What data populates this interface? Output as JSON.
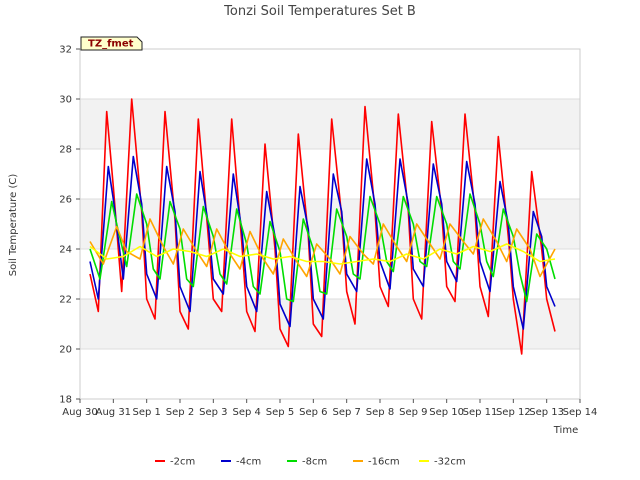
{
  "chart_data": {
    "type": "line",
    "title": "Tonzi Soil Temperatures Set B",
    "xlabel": "Time",
    "ylabel": "Soil Temperature (C)",
    "ylim": [
      18,
      32
    ],
    "yticks": [
      18,
      20,
      22,
      24,
      26,
      28,
      30,
      32
    ],
    "xlim": [
      0,
      15
    ],
    "xtick_labels": [
      "Aug 30",
      "Aug 31",
      "Sep 1",
      "Sep 2",
      "Sep 3",
      "Sep 4",
      "Sep 5",
      "Sep 6",
      "Sep 7",
      "Sep 8",
      "Sep 9",
      "Sep 10",
      "Sep 11",
      "Sep 12",
      "Sep 13",
      "Sep 14"
    ],
    "grid": "horizontal bands",
    "legend_position": "bottom",
    "annotation": "TZ_fmet",
    "series": [
      {
        "name": "-2cm",
        "color": "#ff0000",
        "x": [
          0.3,
          0.55,
          0.8,
          1.0,
          1.25,
          1.55,
          1.85,
          2.0,
          2.25,
          2.55,
          2.85,
          3.0,
          3.25,
          3.55,
          3.85,
          4.0,
          4.25,
          4.55,
          4.85,
          5.0,
          5.25,
          5.55,
          5.85,
          6.0,
          6.25,
          6.55,
          6.85,
          7.0,
          7.25,
          7.55,
          7.85,
          8.0,
          8.25,
          8.55,
          8.85,
          9.0,
          9.25,
          9.55,
          9.85,
          10.0,
          10.25,
          10.55,
          10.85,
          11.0,
          11.25,
          11.55,
          11.85,
          12.0,
          12.25,
          12.55,
          12.85,
          13.0,
          13.25,
          13.55,
          13.85,
          14.0,
          14.25
        ],
        "y": [
          23.0,
          21.5,
          29.5,
          26.5,
          22.3,
          30.0,
          25.5,
          22.0,
          21.2,
          29.5,
          25.2,
          21.5,
          20.8,
          29.2,
          24.5,
          22.0,
          21.5,
          29.2,
          24.3,
          21.5,
          20.7,
          28.2,
          24.0,
          20.8,
          20.1,
          28.6,
          24.5,
          21.0,
          20.5,
          29.2,
          25.3,
          22.3,
          21.0,
          29.7,
          25.5,
          22.5,
          21.7,
          29.4,
          25.5,
          22.0,
          21.2,
          29.1,
          25.5,
          22.5,
          21.9,
          29.4,
          25.5,
          22.5,
          21.3,
          28.5,
          24.5,
          22.0,
          19.8,
          27.1,
          24.0,
          22.0,
          20.7
        ]
      },
      {
        "name": "-4cm",
        "color": "#0000cc",
        "x": [
          0.3,
          0.55,
          0.85,
          1.0,
          1.3,
          1.6,
          1.85,
          2.0,
          2.3,
          2.6,
          2.85,
          3.0,
          3.3,
          3.6,
          3.85,
          4.0,
          4.3,
          4.6,
          4.85,
          5.0,
          5.3,
          5.6,
          5.85,
          6.0,
          6.3,
          6.6,
          6.85,
          7.0,
          7.3,
          7.6,
          7.85,
          8.0,
          8.3,
          8.6,
          8.85,
          9.0,
          9.3,
          9.6,
          9.85,
          10.0,
          10.3,
          10.6,
          10.85,
          11.0,
          11.3,
          11.6,
          11.85,
          12.0,
          12.3,
          12.6,
          12.85,
          13.0,
          13.3,
          13.6,
          13.85,
          14.0,
          14.25
        ],
        "y": [
          23.5,
          22.0,
          27.3,
          26.0,
          22.8,
          27.7,
          25.8,
          23.0,
          22.0,
          27.3,
          25.5,
          22.5,
          21.5,
          27.1,
          25.0,
          22.8,
          22.2,
          27.0,
          24.8,
          22.5,
          21.5,
          26.3,
          24.5,
          21.8,
          20.9,
          26.5,
          24.8,
          22.0,
          21.2,
          27.0,
          25.5,
          23.0,
          22.3,
          27.6,
          25.8,
          23.5,
          22.4,
          27.6,
          25.8,
          23.2,
          22.5,
          27.4,
          25.8,
          23.5,
          22.7,
          27.5,
          25.8,
          23.5,
          22.3,
          26.7,
          25.0,
          22.5,
          20.8,
          25.5,
          24.5,
          22.5,
          21.7
        ]
      },
      {
        "name": "-8cm",
        "color": "#00dd00",
        "x": [
          0.3,
          0.6,
          0.95,
          1.1,
          1.4,
          1.7,
          2.0,
          2.2,
          2.4,
          2.7,
          3.0,
          3.2,
          3.4,
          3.7,
          4.0,
          4.2,
          4.4,
          4.7,
          5.0,
          5.2,
          5.4,
          5.7,
          6.0,
          6.2,
          6.4,
          6.7,
          7.0,
          7.2,
          7.4,
          7.7,
          8.0,
          8.2,
          8.4,
          8.7,
          9.0,
          9.2,
          9.4,
          9.7,
          10.0,
          10.2,
          10.4,
          10.7,
          11.0,
          11.2,
          11.4,
          11.7,
          12.0,
          12.2,
          12.4,
          12.7,
          13.0,
          13.2,
          13.4,
          13.7,
          14.0,
          14.25
        ],
        "y": [
          24.0,
          22.8,
          25.9,
          25.0,
          23.3,
          26.2,
          25.0,
          23.2,
          22.8,
          25.9,
          24.8,
          22.8,
          22.5,
          25.7,
          24.5,
          23.0,
          22.6,
          25.6,
          24.2,
          22.5,
          22.2,
          25.1,
          23.9,
          22.0,
          21.9,
          25.2,
          24.0,
          22.3,
          22.2,
          25.6,
          24.5,
          23.0,
          22.8,
          26.1,
          25.0,
          23.5,
          23.1,
          26.1,
          25.0,
          23.5,
          23.3,
          26.1,
          25.0,
          23.5,
          23.2,
          26.2,
          25.0,
          23.5,
          22.9,
          25.6,
          24.5,
          23.0,
          21.9,
          24.6,
          24.0,
          22.8
        ]
      },
      {
        "name": "-16cm",
        "color": "#ffa500",
        "x": [
          0.3,
          0.7,
          1.1,
          1.4,
          1.8,
          2.1,
          2.5,
          2.8,
          3.1,
          3.5,
          3.8,
          4.1,
          4.5,
          4.8,
          5.1,
          5.5,
          5.8,
          6.1,
          6.5,
          6.8,
          7.1,
          7.5,
          7.8,
          8.1,
          8.5,
          8.8,
          9.1,
          9.5,
          9.8,
          10.1,
          10.5,
          10.8,
          11.1,
          11.5,
          11.8,
          12.1,
          12.5,
          12.8,
          13.1,
          13.5,
          13.8,
          14.25
        ],
        "y": [
          24.3,
          23.4,
          24.9,
          23.9,
          23.6,
          25.2,
          24.1,
          23.4,
          24.8,
          23.9,
          23.3,
          24.8,
          23.8,
          23.2,
          24.7,
          23.6,
          23.0,
          24.4,
          23.5,
          22.9,
          24.2,
          23.6,
          23.0,
          24.5,
          23.8,
          23.4,
          25.0,
          24.1,
          23.5,
          25.0,
          24.2,
          23.6,
          25.0,
          24.3,
          23.8,
          25.2,
          24.3,
          23.5,
          24.8,
          24.0,
          22.9,
          24.0
        ]
      },
      {
        "name": "-32cm",
        "color": "#ffff00",
        "x": [
          0.3,
          0.8,
          1.3,
          1.8,
          2.3,
          2.8,
          3.3,
          3.8,
          4.3,
          4.8,
          5.3,
          5.8,
          6.3,
          6.8,
          7.3,
          7.8,
          8.3,
          8.8,
          9.3,
          9.8,
          10.3,
          10.8,
          11.3,
          11.8,
          12.3,
          12.8,
          13.3,
          13.8,
          14.25
        ],
        "y": [
          24.1,
          23.6,
          23.7,
          24.1,
          23.7,
          24.0,
          23.9,
          23.7,
          24.0,
          23.7,
          23.8,
          23.6,
          23.7,
          23.5,
          23.5,
          23.4,
          23.5,
          23.6,
          23.5,
          23.8,
          23.6,
          24.0,
          23.8,
          24.1,
          23.9,
          24.2,
          23.9,
          23.5,
          23.6
        ]
      }
    ]
  }
}
